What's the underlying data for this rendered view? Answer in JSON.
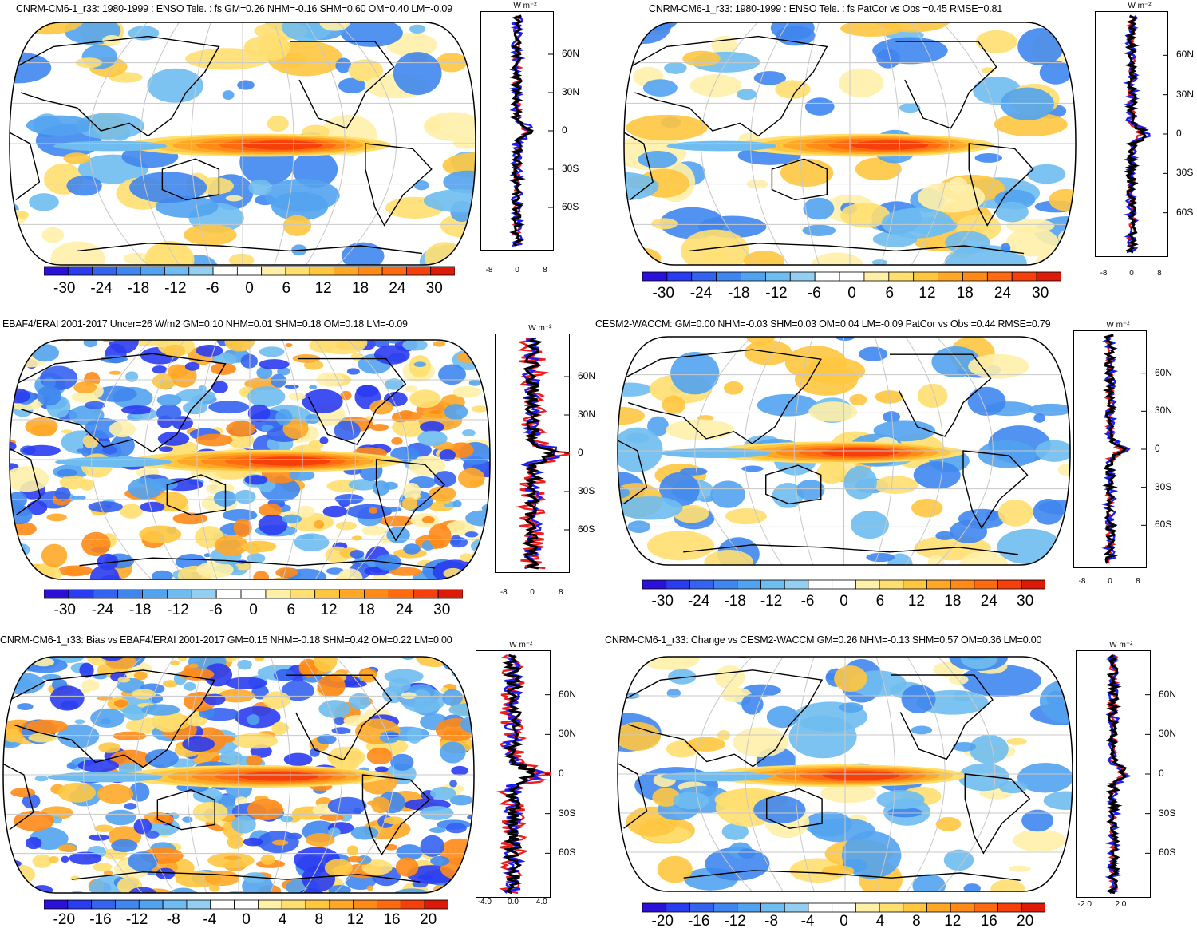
{
  "panels": [
    {
      "id": "p1",
      "title": "CNRM-CM6-1_r33: 1980-1999 : ENSO Tele. : fs GM=0.26 NHM=-0.16 SHM=0.60 OM=0.40 LM=-0.09",
      "unit": "W m⁻²",
      "zonal_xticks": [
        "-8",
        "0",
        "8"
      ],
      "colorbar": [
        "-30",
        "-24",
        "-18",
        "-12",
        "-6",
        "0",
        "6",
        "12",
        "18",
        "24",
        "30"
      ]
    },
    {
      "id": "p2",
      "title": "CNRM-CM6-1_r33: 1980-1999 : ENSO Tele. : fs PatCor vs Obs =0.45 RMSE=0.81",
      "unit": "W m⁻²",
      "zonal_xticks": [
        "-8",
        "0",
        "8"
      ],
      "colorbar": [
        "-30",
        "-24",
        "-18",
        "-12",
        "-6",
        "0",
        "6",
        "12",
        "18",
        "24",
        "30"
      ]
    },
    {
      "id": "p3",
      "title": "EBAF4/ERAI 2001-2017 Uncer=26 W/m2 GM=0.10 NHM=0.01 SHM=0.18 OM=0.18 LM=-0.09",
      "unit": "W m⁻²",
      "zonal_xticks": [
        "-8",
        "0",
        "8"
      ],
      "colorbar": [
        "-30",
        "-24",
        "-18",
        "-12",
        "-6",
        "0",
        "6",
        "12",
        "18",
        "24",
        "30"
      ]
    },
    {
      "id": "p4",
      "title": "CESM2-WACCM: GM=0.00 NHM=-0.03 SHM=0.03 OM=0.04 LM=-0.09 PatCor vs Obs =0.44 RMSE=0.79",
      "unit": "W m⁻²",
      "zonal_xticks": [
        "-8",
        "0",
        "8"
      ],
      "colorbar": [
        "-30",
        "-24",
        "-18",
        "-12",
        "-6",
        "0",
        "6",
        "12",
        "18",
        "24",
        "30"
      ]
    },
    {
      "id": "p5",
      "title": "CNRM-CM6-1_r33: Bias vs EBAF4/ERAI 2001-2017 GM=0.15 NHM=-0.18 SHM=0.42 OM=0.22 LM=0.00",
      "unit": "W m⁻²",
      "zonal_xticks": [
        "-4.0",
        "0.0",
        "4.0"
      ],
      "colorbar": [
        "-20",
        "-16",
        "-12",
        "-8",
        "-4",
        "0",
        "4",
        "8",
        "12",
        "16",
        "20"
      ]
    },
    {
      "id": "p6",
      "title": "CNRM-CM6-1_r33: Change vs CESM2-WACCM GM=0.26 NHM=-0.13 SHM=0.57 OM=0.36 LM=0.00",
      "unit": "W m⁻²",
      "zonal_xticks": [
        "-2.0",
        "2.0"
      ],
      "colorbar": [
        "-20",
        "-16",
        "-12",
        "-8",
        "-4",
        "0",
        "4",
        "8",
        "12",
        "16",
        "20"
      ]
    }
  ],
  "lat_labels": [
    "60N",
    "30N",
    "0",
    "30S",
    "60S"
  ],
  "colors": {
    "diverging": [
      "#2b10d8",
      "#2a3cf0",
      "#3463f0",
      "#3f86ee",
      "#52a3ef",
      "#6fbcf0",
      "#93cff1",
      "#ffffff",
      "#ffffff",
      "#fff0a8",
      "#ffdf70",
      "#ffc640",
      "#ffa828",
      "#ff8a18",
      "#ff6a10",
      "#f5400c",
      "#dd1a08"
    ],
    "zonal_model": "#000000",
    "zonal_ocean": "#1c1cf0",
    "zonal_land": "#f01c1c"
  }
}
